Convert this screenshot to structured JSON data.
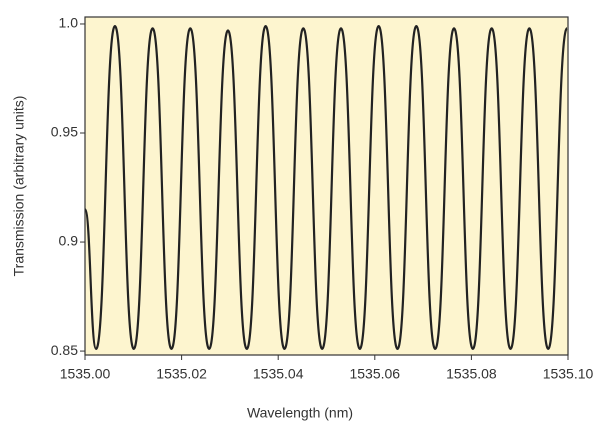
{
  "chart_data": {
    "type": "line",
    "xlabel": "Wavelength (nm)",
    "ylabel": "Transmission (arbitrary units)",
    "x": [
      1535.0,
      1535.0023,
      1535.0062,
      1535.0101,
      1535.014,
      1535.0179,
      1535.0218,
      1535.0257,
      1535.0296,
      1535.0335,
      1535.0374,
      1535.0413,
      1535.0452,
      1535.0491,
      1535.053,
      1535.0569,
      1535.0608,
      1535.0647,
      1535.0686,
      1535.0725,
      1535.0764,
      1535.0803,
      1535.0842,
      1535.0881,
      1535.092,
      1535.0959,
      1535.0998
    ],
    "series": [
      {
        "color": "#222222",
        "values": [
          0.915,
          0.851,
          0.999,
          0.851,
          0.998,
          0.851,
          0.998,
          0.851,
          0.997,
          0.851,
          0.999,
          0.851,
          0.998,
          0.851,
          0.998,
          0.851,
          0.999,
          0.851,
          0.999,
          0.851,
          0.998,
          0.851,
          0.998,
          0.851,
          0.998,
          0.851,
          0.998
        ]
      }
    ],
    "xlim": [
      1535.0,
      1535.1
    ],
    "ylim": [
      0.8482,
      1.0032
    ],
    "xticks": [
      {
        "value": 1535.0,
        "label": "1535.00"
      },
      {
        "value": 1535.02,
        "label": "1535.02"
      },
      {
        "value": 1535.04,
        "label": "1535.04"
      },
      {
        "value": 1535.06,
        "label": "1535.06"
      },
      {
        "value": 1535.08,
        "label": "1535.08"
      },
      {
        "value": 1535.1,
        "label": "1535.10"
      }
    ],
    "yticks": [
      0.85,
      0.9,
      0.95,
      {
        "value": 1.0,
        "label": "1.0"
      }
    ],
    "background": "#fdf5cf"
  }
}
